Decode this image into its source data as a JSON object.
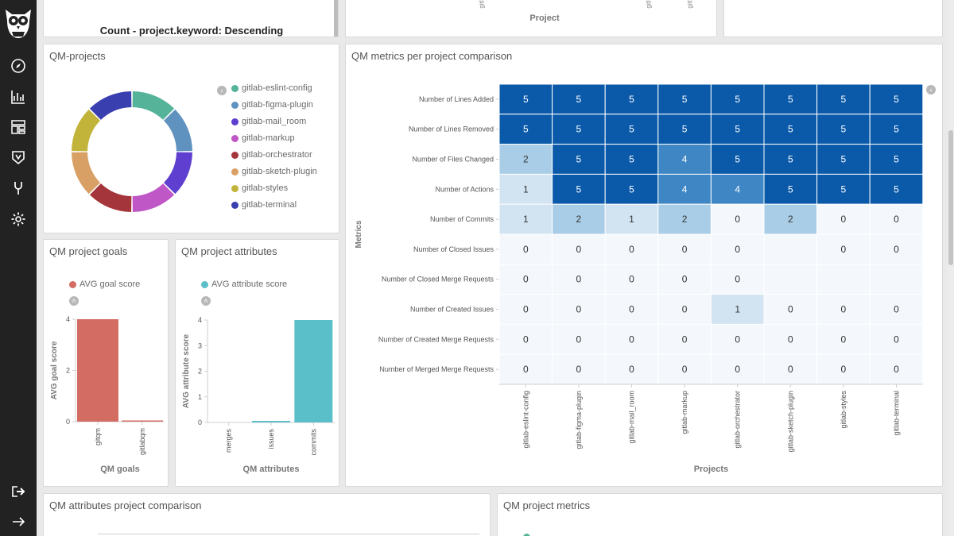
{
  "top_panels": {
    "left_title": "Count - project.keyword: Descending",
    "mid_axis_label": "Project",
    "mid_tick_labels": [
      "gitl",
      "gitl",
      "gitl"
    ]
  },
  "qm_projects": {
    "title": "QM-projects",
    "slices": [
      {
        "name": "gitlab-eslint-config",
        "value": 1,
        "color": "#54B399"
      },
      {
        "name": "gitlab-figma-plugin",
        "value": 1,
        "color": "#6092C0"
      },
      {
        "name": "gitlab-mail_room",
        "value": 1,
        "color": "#5f3fcf"
      },
      {
        "name": "gitlab-markup",
        "value": 1,
        "color": "#c057c7"
      },
      {
        "name": "gitlab-orchestrator",
        "value": 1,
        "color": "#a4353a"
      },
      {
        "name": "gitlab-sketch-plugin",
        "value": 1,
        "color": "#d9a066"
      },
      {
        "name": "gitlab-styles",
        "value": 1,
        "color": "#c2b43a"
      },
      {
        "name": "gitlab-terminal",
        "value": 1,
        "color": "#3a3fb0"
      }
    ]
  },
  "qm_goals": {
    "title": "QM project goals",
    "legend": "AVG goal score",
    "color": "#d36c62",
    "ylabel": "AVG goal score",
    "xlabel": "QM goals",
    "ticks": [
      "0",
      "2",
      "4"
    ],
    "categories": [
      "gitqm",
      "gitlabqm"
    ],
    "values": [
      4,
      0.02
    ]
  },
  "qm_attributes": {
    "title": "QM project attributes",
    "legend": "AVG attribute score",
    "color": "#5bbfc9",
    "ylabel": "AVG attribute score",
    "xlabel": "QM attributes",
    "ticks": [
      "0",
      "1",
      "2",
      "3",
      "4"
    ],
    "categories": [
      "merges",
      "issues",
      "commits"
    ],
    "values": [
      0,
      0.06,
      4
    ]
  },
  "heatmap": {
    "title": "QM metrics per project comparison",
    "ylabel": "Metrics",
    "xlabel": "Projects",
    "projects": [
      "gitlab-eslint-config",
      "gitlab-figma-plugin",
      "gitlab-mail_room",
      "gitlab-markup",
      "gitlab-orchestrator",
      "gitlab-sketch-plugin",
      "gitlab-styles",
      "gitlab-terminal"
    ],
    "metrics": [
      "Number of Lines Added",
      "Number of Lines Removed",
      "Number of Files Changed",
      "Number of Actions",
      "Number of Commits",
      "Number of Closed Issues",
      "Number of Closed Merge Requests",
      "Number of Created Issues",
      "Number of Created Merge Requests",
      "Number of Merged Merge Requests"
    ],
    "values": [
      [
        5,
        5,
        5,
        5,
        5,
        5,
        5,
        5
      ],
      [
        5,
        5,
        5,
        5,
        5,
        5,
        5,
        5
      ],
      [
        2,
        5,
        5,
        4,
        5,
        5,
        5,
        5
      ],
      [
        1,
        5,
        5,
        4,
        4,
        5,
        5,
        5
      ],
      [
        1,
        2,
        1,
        2,
        0,
        2,
        0,
        0
      ],
      [
        0,
        0,
        0,
        0,
        0,
        null,
        0,
        0
      ],
      [
        0,
        0,
        0,
        0,
        0,
        null,
        null,
        null
      ],
      [
        0,
        0,
        0,
        0,
        1,
        0,
        0,
        0
      ],
      [
        0,
        0,
        0,
        0,
        0,
        0,
        0,
        0
      ],
      [
        0,
        0,
        0,
        0,
        0,
        0,
        0,
        0
      ]
    ]
  },
  "bottom_left": {
    "title": "QM attributes project comparison"
  },
  "bottom_right": {
    "title": "QM project metrics"
  },
  "chart_data": [
    {
      "type": "pie",
      "title": "QM-projects",
      "categories": [
        "gitlab-eslint-config",
        "gitlab-figma-plugin",
        "gitlab-mail_room",
        "gitlab-markup",
        "gitlab-orchestrator",
        "gitlab-sketch-plugin",
        "gitlab-styles",
        "gitlab-terminal"
      ],
      "values": [
        1,
        1,
        1,
        1,
        1,
        1,
        1,
        1
      ]
    },
    {
      "type": "bar",
      "title": "QM project goals",
      "categories": [
        "gitqm",
        "gitlabqm"
      ],
      "values": [
        4,
        0.02
      ],
      "xlabel": "QM goals",
      "ylabel": "AVG goal score",
      "ylim": [
        0,
        4
      ]
    },
    {
      "type": "bar",
      "title": "QM project attributes",
      "categories": [
        "merges",
        "issues",
        "commits"
      ],
      "values": [
        0,
        0.06,
        4
      ],
      "xlabel": "QM attributes",
      "ylabel": "AVG attribute score",
      "ylim": [
        0,
        4
      ]
    },
    {
      "type": "heatmap",
      "title": "QM metrics per project comparison",
      "xlabel": "Projects",
      "ylabel": "Metrics",
      "x": [
        "gitlab-eslint-config",
        "gitlab-figma-plugin",
        "gitlab-mail_room",
        "gitlab-markup",
        "gitlab-orchestrator",
        "gitlab-sketch-plugin",
        "gitlab-styles",
        "gitlab-terminal"
      ],
      "y": [
        "Number of Lines Added",
        "Number of Lines Removed",
        "Number of Files Changed",
        "Number of Actions",
        "Number of Commits",
        "Number of Closed Issues",
        "Number of Closed Merge Requests",
        "Number of Created Issues",
        "Number of Created Merge Requests",
        "Number of Merged Merge Requests"
      ]
    }
  ]
}
